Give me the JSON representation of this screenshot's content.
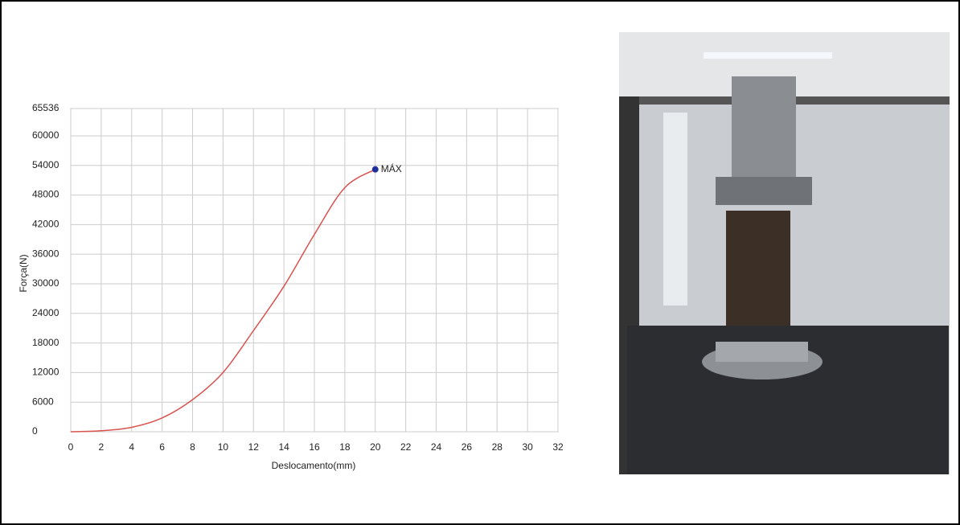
{
  "chart_data": {
    "type": "line",
    "xlabel": "Deslocamento(mm)",
    "ylabel": "Força(N)",
    "x": [
      0,
      2,
      4,
      6,
      8,
      10,
      12,
      14,
      16,
      18,
      20
    ],
    "series": [
      {
        "color": "#d9534f",
        "values": [
          0,
          200,
          900,
          2800,
          6500,
          12000,
          20500,
          29500,
          40000,
          49500,
          53200
        ]
      }
    ],
    "annotation": {
      "text": "MÁX",
      "x": 20,
      "y": 53200,
      "color": "#1f2f9f"
    },
    "xlim": [
      0,
      32
    ],
    "xticks": [
      0,
      2,
      4,
      6,
      8,
      10,
      12,
      14,
      16,
      18,
      20,
      22,
      24,
      26,
      28,
      30,
      32
    ],
    "ylim": [
      0,
      65536
    ],
    "yticks": [
      0,
      6000,
      12000,
      18000,
      24000,
      30000,
      36000,
      42000,
      48000,
      54000,
      60000,
      65536
    ],
    "grid": true
  }
}
